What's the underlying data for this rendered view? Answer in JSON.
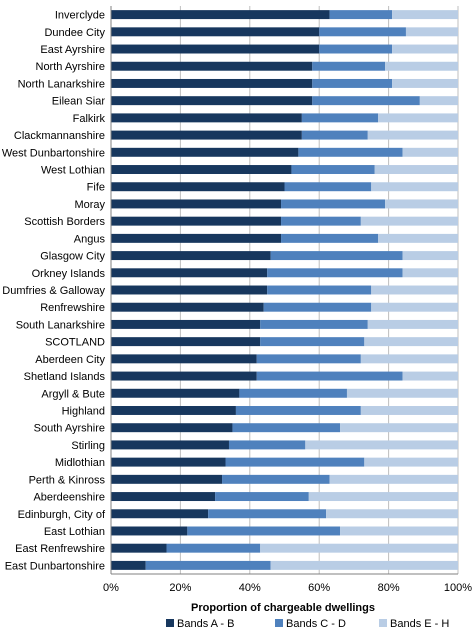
{
  "chart_data": {
    "type": "bar",
    "orientation": "horizontal",
    "stacked": true,
    "xlabel": "Proportion of chargeable dwellings",
    "ylabel": "",
    "xlim": [
      0,
      100
    ],
    "x_ticks": [
      "0%",
      "20%",
      "40%",
      "60%",
      "80%",
      "100%"
    ],
    "grid": true,
    "legend_position": "bottom",
    "categories": [
      "Inverclyde",
      "Dundee City",
      "East Ayrshire",
      "North Ayrshire",
      "North Lanarkshire",
      "Eilean Siar",
      "Falkirk",
      "Clackmannanshire",
      "West Dunbartonshire",
      "West Lothian",
      "Fife",
      "Moray",
      "Scottish Borders",
      "Angus",
      "Glasgow City",
      "Orkney Islands",
      "Dumfries & Galloway",
      "Renfrewshire",
      "South Lanarkshire",
      "SCOTLAND",
      "Aberdeen City",
      "Shetland Islands",
      "Argyll & Bute",
      "Highland",
      "South Ayrshire",
      "Stirling",
      "Midlothian",
      "Perth & Kinross",
      "Aberdeenshire",
      "Edinburgh, City of",
      "East Lothian",
      "East Renfrewshire",
      "East Dunbartonshire"
    ],
    "series": [
      {
        "name": "Bands A - B",
        "color": "#17375e",
        "values": [
          63,
          60,
          60,
          58,
          58,
          58,
          55,
          55,
          54,
          52,
          50,
          49,
          49,
          49,
          46,
          45,
          45,
          44,
          43,
          43,
          42,
          42,
          37,
          36,
          35,
          34,
          33,
          32,
          30,
          28,
          22,
          16,
          10
        ]
      },
      {
        "name": "Bands C - D",
        "color": "#4f81bd",
        "values": [
          18,
          25,
          21,
          21,
          23,
          31,
          22,
          19,
          30,
          24,
          25,
          30,
          23,
          28,
          38,
          39,
          30,
          31,
          31,
          30,
          30,
          42,
          31,
          36,
          31,
          22,
          40,
          31,
          27,
          34,
          44,
          27,
          36
        ]
      },
      {
        "name": "Bands E - H",
        "color": "#b9cde5",
        "values": [
          19,
          15,
          19,
          21,
          19,
          11,
          23,
          26,
          16,
          24,
          25,
          21,
          28,
          23,
          16,
          16,
          25,
          25,
          26,
          27,
          28,
          16,
          32,
          28,
          34,
          44,
          27,
          37,
          43,
          38,
          34,
          57,
          54
        ]
      }
    ]
  }
}
